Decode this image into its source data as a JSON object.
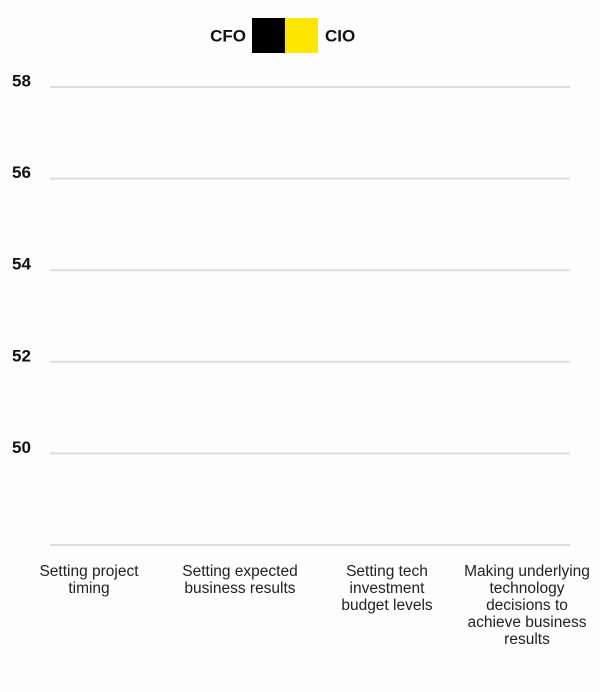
{
  "chart_data": {
    "type": "bar",
    "categories": [
      "Setting project timing",
      "Setting expected business results",
      "Setting tech investment budget levels",
      "Making underlying technology decisions to achieve business results"
    ],
    "series": [
      {
        "name": "CFO",
        "color": "#000000",
        "values": [
          null,
          null,
          null,
          null
        ]
      },
      {
        "name": "CIO",
        "color": "#ffe600",
        "values": [
          null,
          null,
          null,
          null
        ]
      }
    ],
    "ylim": [
      48,
      58
    ],
    "yticks": [
      50,
      52,
      54,
      56,
      58
    ],
    "grid": true
  }
}
